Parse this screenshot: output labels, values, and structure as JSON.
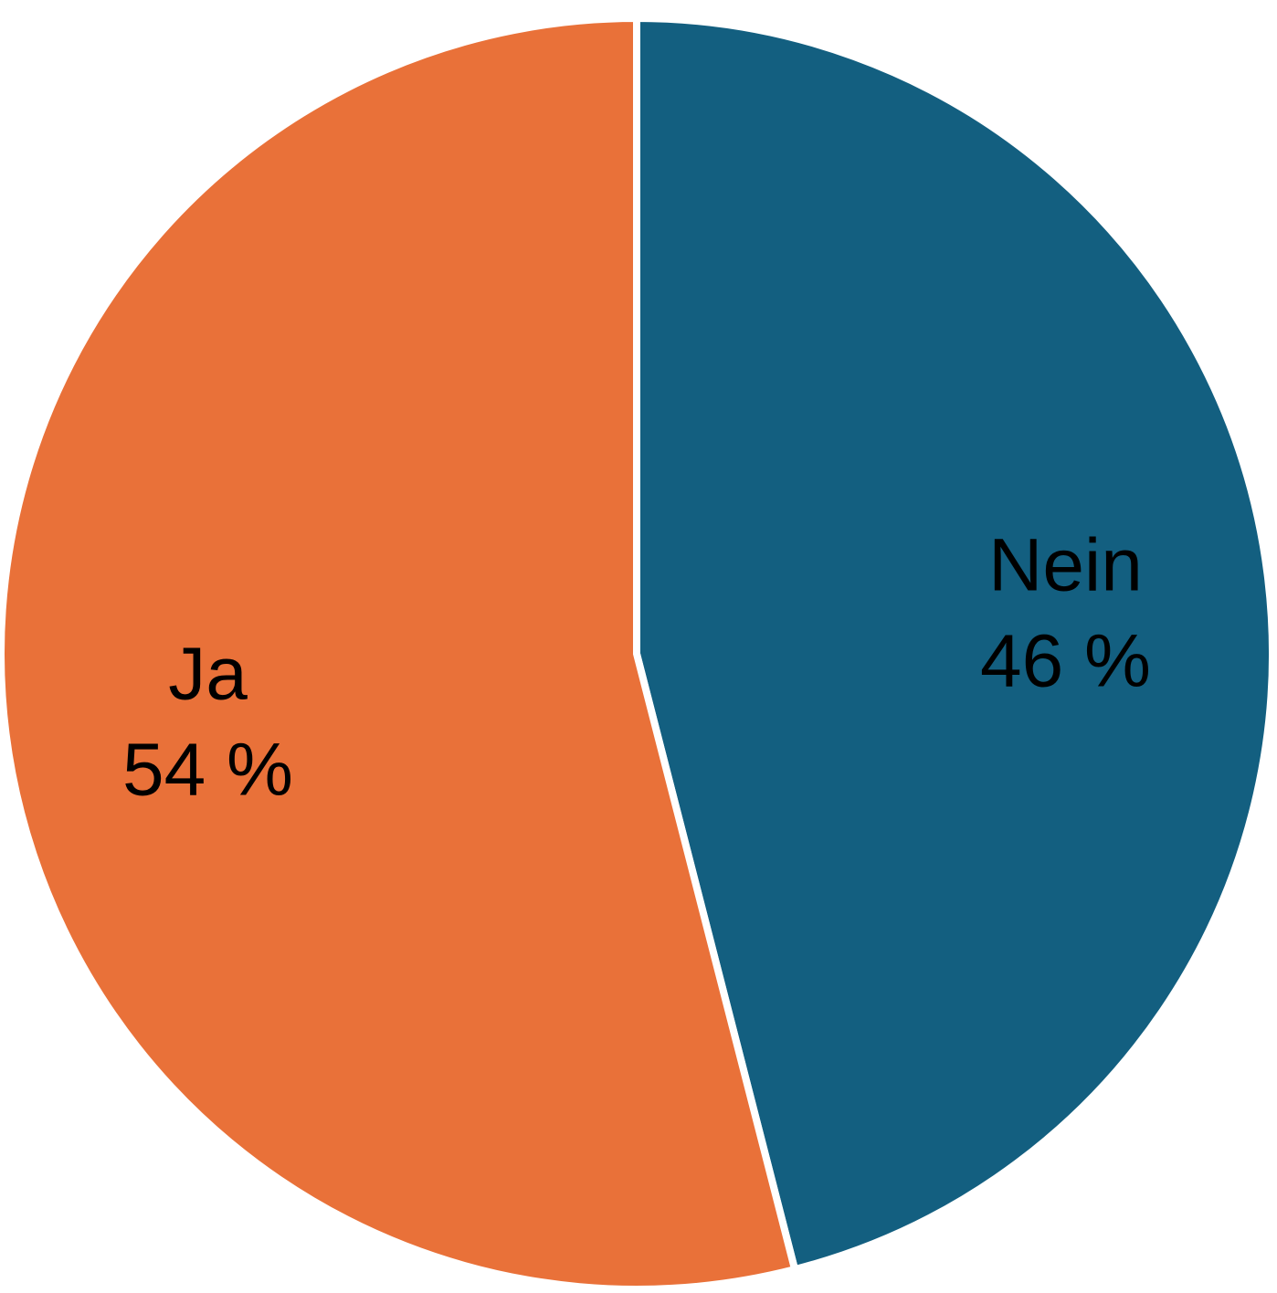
{
  "chart_data": {
    "type": "pie",
    "slices": [
      {
        "name": "Nein",
        "value": 46,
        "label": "Nein",
        "value_label": "46 %",
        "color": "#135f80"
      },
      {
        "name": "Ja",
        "value": 54,
        "label": "Ja",
        "value_label": "54 %",
        "color": "#e97139"
      }
    ],
    "start": "top",
    "direction": "clockwise",
    "legend": "none",
    "data_labels": "inside"
  }
}
